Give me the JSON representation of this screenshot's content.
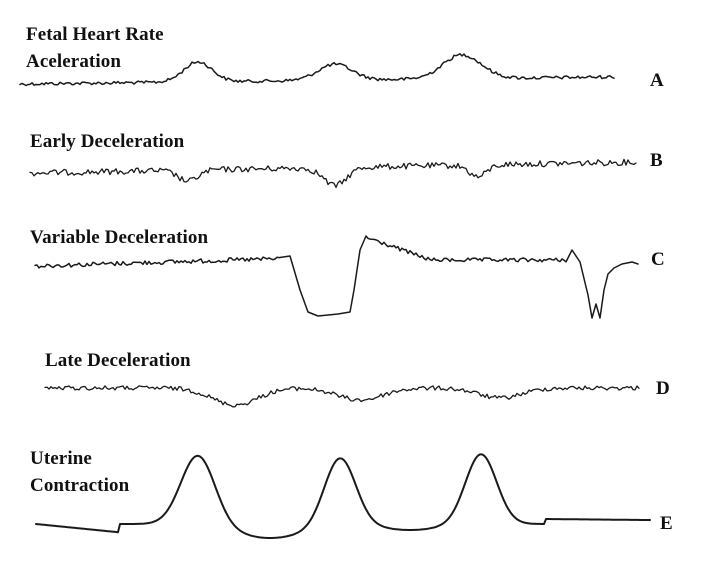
{
  "panels": [
    {
      "id": "A",
      "label": "Fetal Heart Rate\nAceleration",
      "letter": "A"
    },
    {
      "id": "B",
      "label": "Early Deceleration",
      "letter": "B"
    },
    {
      "id": "C",
      "label": "Variable Deceleration",
      "letter": "C"
    },
    {
      "id": "D",
      "label": "Late Deceleration",
      "letter": "D"
    },
    {
      "id": "E",
      "label": "Uterine\nContraction",
      "letter": "E"
    }
  ]
}
